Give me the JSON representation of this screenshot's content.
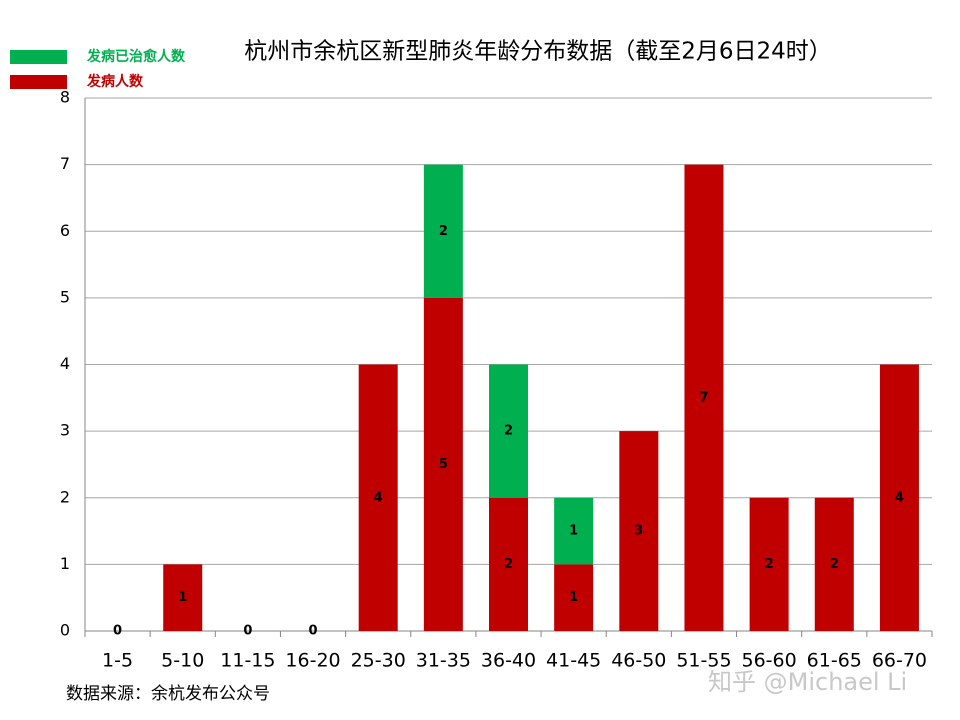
{
  "chart_data": {
    "type": "stacked-bar",
    "title": "杭州市余杭区新型肺炎年龄分布数据（截至2月6日24时）",
    "source": "数据来源：余杭发布公众号",
    "watermark": "知乎 @Michael Li",
    "categories": [
      "1-5",
      "5-10",
      "11-15",
      "16-20",
      "25-30",
      "31-35",
      "36-40",
      "41-45",
      "46-50",
      "51-55",
      "56-60",
      "61-65",
      "66-70"
    ],
    "series": [
      {
        "name": "发病人数",
        "color": "#c00000",
        "values": [
          0,
          1,
          0,
          0,
          4,
          5,
          2,
          1,
          3,
          7,
          2,
          2,
          4
        ]
      },
      {
        "name": "发病已治愈人数",
        "color": "#00b050",
        "values": [
          null,
          null,
          null,
          null,
          null,
          2,
          2,
          1,
          null,
          null,
          null,
          null,
          null
        ]
      }
    ],
    "ylim": [
      0,
      8
    ],
    "yticks": [
      0,
      1,
      2,
      3,
      4,
      5,
      6,
      7,
      8
    ],
    "grid": true
  }
}
